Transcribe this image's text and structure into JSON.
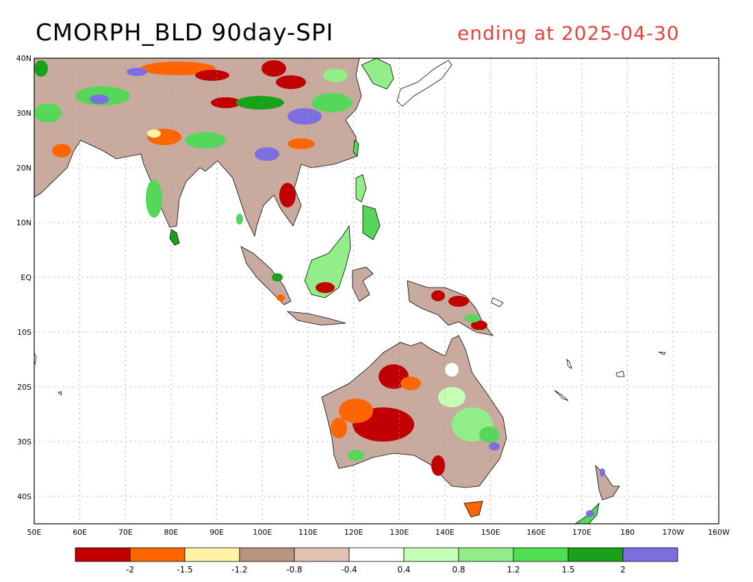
{
  "title": "CMORPH_BLD 90day-SPI",
  "subtitle": "ending at 2025-04-30",
  "map": {
    "region": "South and Southeast Asia, Maritime Continent, Australia and New Zealand",
    "lon_range": [
      50,
      200
    ],
    "lat_range": [
      -45,
      40
    ],
    "grid": true
  },
  "axes": {
    "lat_labels": [
      "40N",
      "30N",
      "20N",
      "10N",
      "EQ",
      "10S",
      "20S",
      "30S",
      "40S"
    ],
    "lon_labels": [
      "50E",
      "60E",
      "70E",
      "80E",
      "90E",
      "100E",
      "110E",
      "120E",
      "130E",
      "140E",
      "150E",
      "160E",
      "170E",
      "180",
      "170W",
      "160W"
    ]
  },
  "legend": {
    "colors": [
      "#c00000",
      "#ff6600",
      "#fff3a6",
      "#b99482",
      "#e3c1b4",
      "#ffffff",
      "#c4ffb5",
      "#91ee88",
      "#4fe04f",
      "#17a21a",
      "#7b6fe0"
    ],
    "labels": [
      "-2",
      "-1.5",
      "-1.2",
      "-0.8",
      "-0.4",
      "0.4",
      "0.8",
      "1.2",
      "1.5",
      "2"
    ]
  }
}
